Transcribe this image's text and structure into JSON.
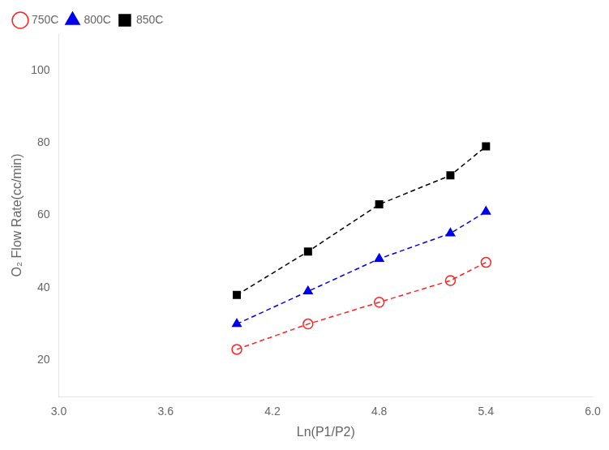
{
  "chart_data": {
    "type": "line",
    "x_label": "Ln(P1/P2)",
    "y_label": "O₂ Flow Rate(cc/min)",
    "xlim": [
      3.0,
      6.0
    ],
    "ylim": [
      10,
      110
    ],
    "xticks": [
      {
        "value": 3.0,
        "label": "3.0"
      },
      3.6,
      4.2,
      4.8,
      5.4,
      {
        "value": 6.0,
        "label": "6.0"
      }
    ],
    "yticks": [
      20,
      40,
      60,
      80,
      100
    ],
    "grid": false,
    "legend": "upper left",
    "series": [
      {
        "name": "750C",
        "color": "#ff2222",
        "marker": "circle-open",
        "line_style": "dashed",
        "x": [
          4.0,
          4.4,
          4.8,
          5.2,
          5.4
        ],
        "values": [
          23,
          30,
          36,
          42,
          47
        ]
      },
      {
        "name": "800C",
        "color": "#0000ee",
        "marker": "triangle",
        "line_style": "dashed",
        "x": [
          4.0,
          4.4,
          4.8,
          5.2,
          5.4
        ],
        "values": [
          30,
          39,
          48,
          55,
          61
        ]
      },
      {
        "name": "850C",
        "color": "#000000",
        "marker": "square",
        "line_style": "dashed",
        "x": [
          4.0,
          4.4,
          4.8,
          5.2,
          5.4
        ],
        "values": [
          38,
          50,
          63,
          71,
          79
        ]
      }
    ]
  }
}
